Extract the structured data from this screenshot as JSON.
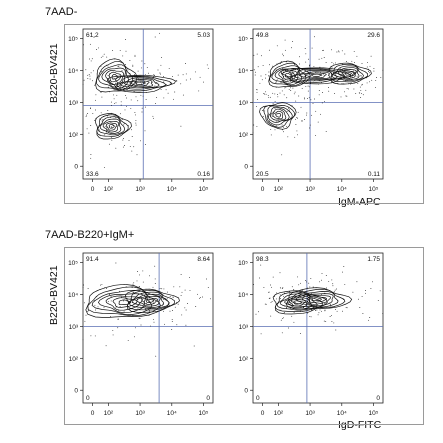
{
  "figure": {
    "panel_a_title": "7AAD-",
    "panel_b_title": "7AAD-B220+IgM+",
    "ylabel": "B220-BV421",
    "xlabel_a": "IgM-APC",
    "xlabel_b": "IgD-FITC"
  },
  "chart_data": [
    {
      "type": "contour",
      "panel": "7AAD-",
      "xlabel": "",
      "ylabel": "B220-BV421",
      "x_ticks": [
        "0",
        "10²",
        "10³",
        "10⁴",
        "10⁵"
      ],
      "y_ticks": [
        "0",
        "10²",
        "10³",
        "10⁴",
        "10⁵"
      ],
      "quadrants": {
        "top_left": "61.2",
        "top_right": "5.03",
        "bottom_left": "33.6",
        "bottom_right": "0.16"
      },
      "gate": {
        "x": 3.1,
        "y": 2.9
      },
      "populations": [
        {
          "x": 2.2,
          "y": 3.8,
          "sx": 0.35,
          "sy": 0.28
        },
        {
          "x": 2.1,
          "y": 2.25,
          "sx": 0.3,
          "sy": 0.22
        },
        {
          "x": 3.0,
          "y": 3.6,
          "sx": 0.55,
          "sy": 0.15
        }
      ]
    },
    {
      "type": "contour",
      "panel": "7AAD-",
      "xlabel": "IgM-APC",
      "ylabel": "",
      "x_ticks": [
        "0",
        "10²",
        "10³",
        "10⁴",
        "10⁵"
      ],
      "y_ticks": [
        "0",
        "10²",
        "10³",
        "10⁴",
        "10⁵"
      ],
      "quadrants": {
        "top_left": "49.8",
        "top_right": "29.6",
        "bottom_left": "20.5",
        "bottom_right": "0.11"
      },
      "gate": {
        "x": 3.0,
        "y": 3.0
      },
      "populations": [
        {
          "x": 2.3,
          "y": 3.85,
          "sx": 0.35,
          "sy": 0.22
        },
        {
          "x": 4.2,
          "y": 3.9,
          "sx": 0.35,
          "sy": 0.18
        },
        {
          "x": 3.2,
          "y": 3.85,
          "sx": 0.6,
          "sy": 0.14
        },
        {
          "x": 2.0,
          "y": 2.6,
          "sx": 0.3,
          "sy": 0.22
        }
      ]
    },
    {
      "type": "contour",
      "panel": "7AAD-B220+IgM+",
      "xlabel": "",
      "ylabel": "B220-BV421",
      "x_ticks": [
        "0",
        "10²",
        "10³",
        "10⁴",
        "10⁵"
      ],
      "y_ticks": [
        "0",
        "10²",
        "10³",
        "10⁴",
        "10⁵"
      ],
      "quadrants": {
        "top_left": "91.4",
        "top_right": "8.64",
        "bottom_left": "0",
        "bottom_right": "0"
      },
      "gate": {
        "x": 3.6,
        "y": 3.0
      },
      "populations": [
        {
          "x": 2.5,
          "y": 3.75,
          "sx": 0.7,
          "sy": 0.28
        },
        {
          "x": 3.3,
          "y": 3.8,
          "sx": 0.45,
          "sy": 0.2
        }
      ]
    },
    {
      "type": "contour",
      "panel": "7AAD-B220+IgM+",
      "xlabel": "IgD-FITC",
      "ylabel": "",
      "x_ticks": [
        "0",
        "10²",
        "10³",
        "10⁴",
        "10⁵"
      ],
      "y_ticks": [
        "0",
        "10²",
        "10³",
        "10⁴",
        "10⁵"
      ],
      "quadrants": {
        "top_left": "98.3",
        "top_right": "1.75",
        "bottom_left": "0",
        "bottom_right": "0"
      },
      "gate": {
        "x": 2.9,
        "y": 3.0
      },
      "populations": [
        {
          "x": 3.2,
          "y": 3.85,
          "sx": 0.55,
          "sy": 0.18
        },
        {
          "x": 2.6,
          "y": 3.75,
          "sx": 0.45,
          "sy": 0.2
        }
      ]
    }
  ]
}
